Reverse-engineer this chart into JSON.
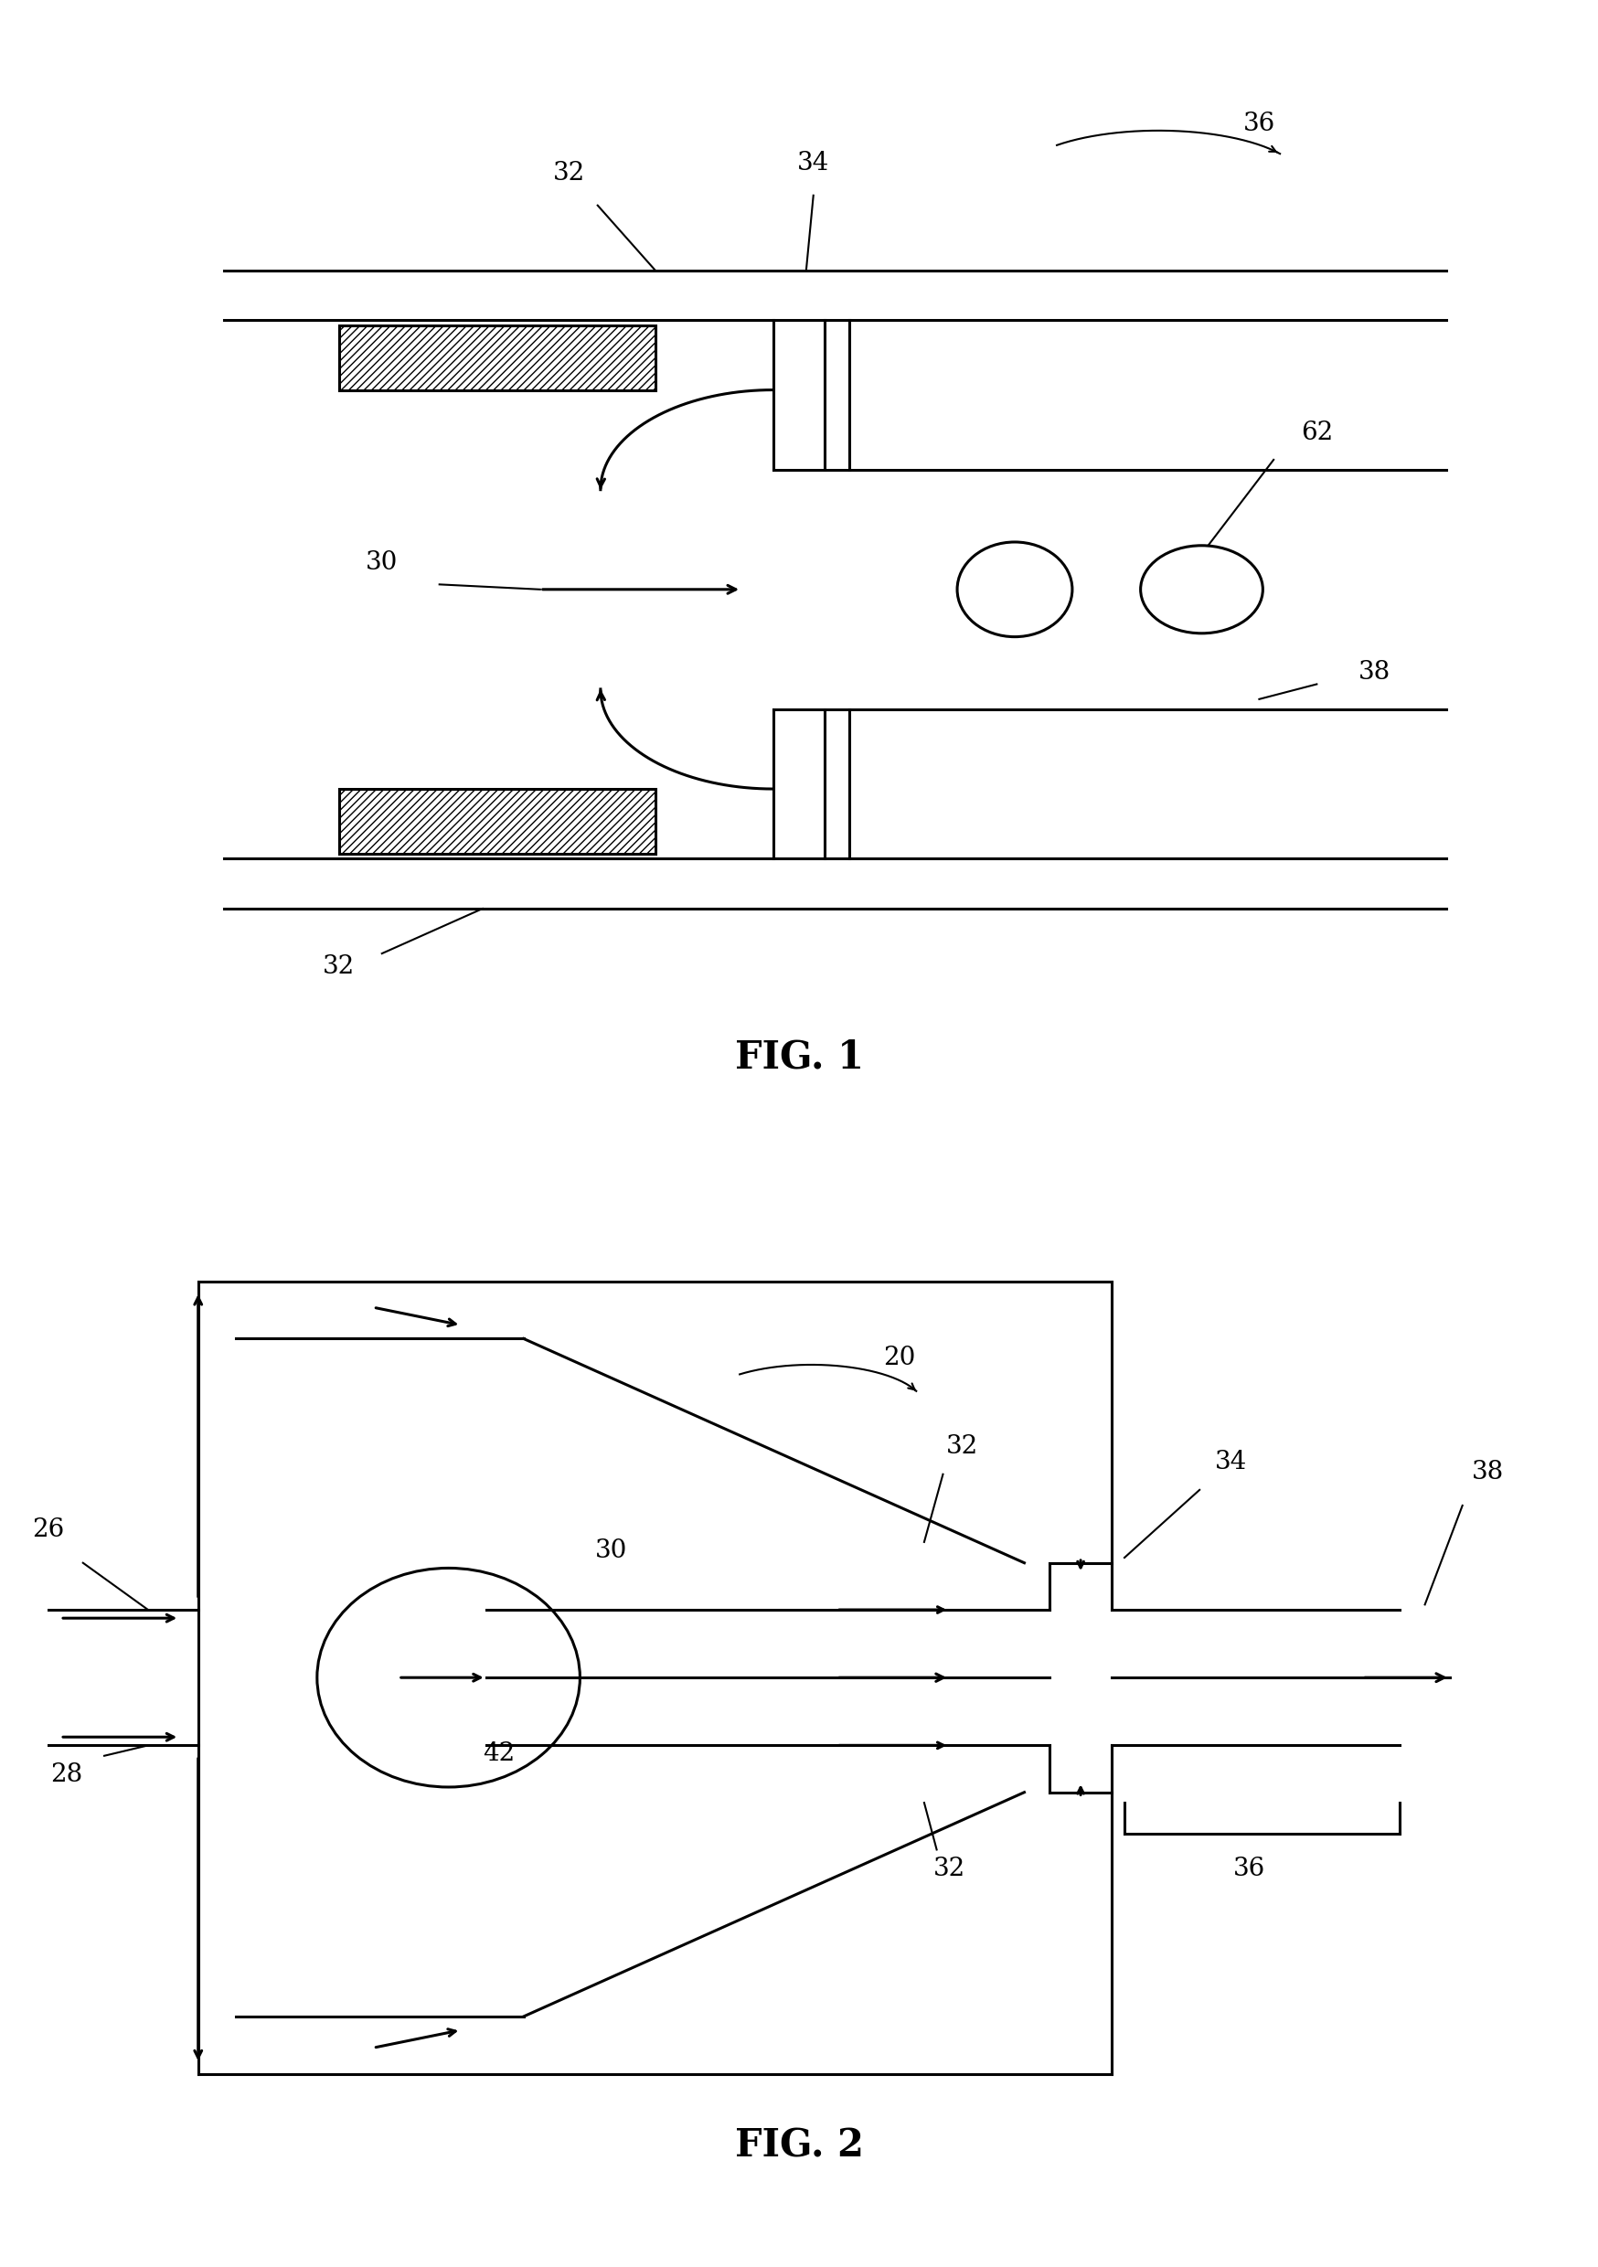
{
  "fig1_label": "FIG. 1",
  "fig2_label": "FIG. 2",
  "background_color": "#ffffff",
  "line_color": "#000000",
  "lw_main": 2.2,
  "lw_thin": 1.5,
  "label_fs": 20,
  "caption_fs": 30
}
